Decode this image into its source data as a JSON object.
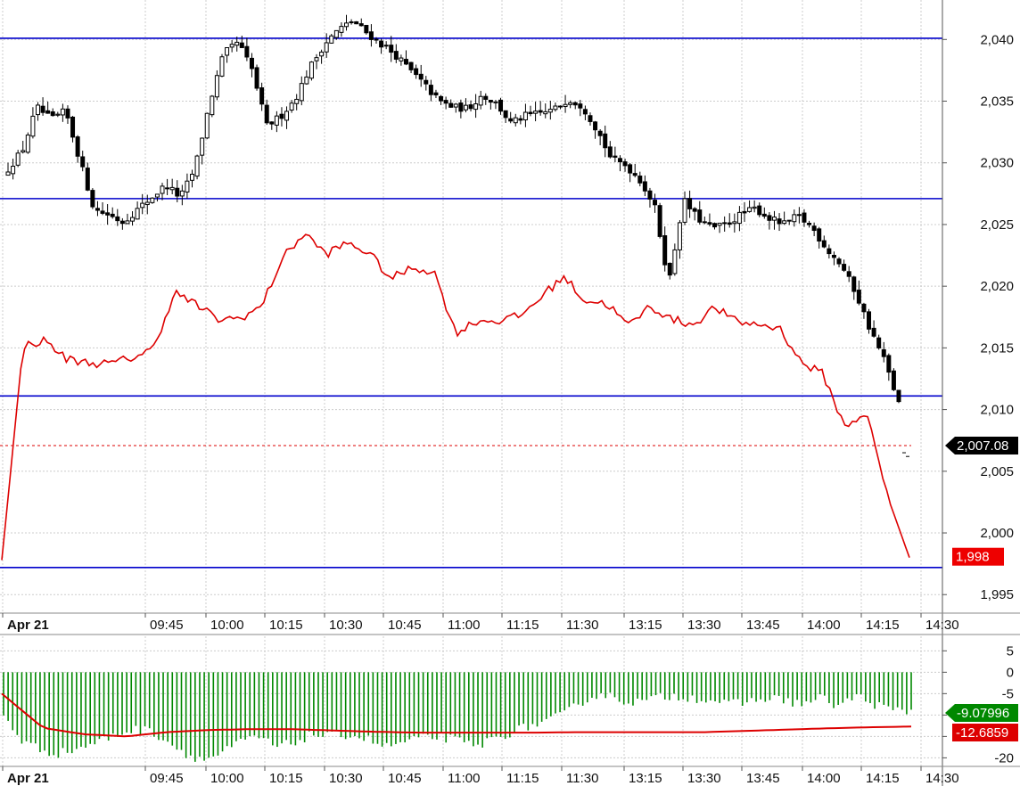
{
  "chart_data": [
    {
      "type": "candlestick",
      "panel": "price",
      "title": "",
      "xlabel": "",
      "ylabel": "",
      "x_tick_labels": [
        "Apr 21",
        "09:45",
        "10:00",
        "10:15",
        "10:30",
        "10:45",
        "11:00",
        "11:15",
        "11:30",
        "13:15",
        "13:30",
        "13:45",
        "14:00",
        "14:15",
        "14:30"
      ],
      "y_tick_labels": [
        "2,040",
        "2,035",
        "2,030",
        "2,025",
        "2,020",
        "2,015",
        "2,010",
        "2,005",
        "2,000",
        "1,995"
      ],
      "y_ticks": [
        2040,
        2035,
        2030,
        2025,
        2020,
        2015,
        2010,
        2005,
        2000,
        1995
      ],
      "ylim": [
        1993.5,
        2043.2
      ],
      "grid": true,
      "horizontal_lines": [
        2040.1,
        2027.1,
        2011.1,
        1997.2
      ],
      "horizontal_line_color": "#0000cc",
      "last_price_dashed": 2007.08,
      "last_price_label": "2,007.08",
      "red_line_last_label": "1,998",
      "candle_close_path": [
        2029.5,
        2031,
        2034.5,
        2033.5,
        2034.2,
        2030.2,
        2026.2,
        2025.8,
        2025.2,
        2026.2,
        2027.2,
        2028.2,
        2027.2,
        2029.5,
        2034.7,
        2038.8,
        2039.8,
        2037.5,
        2033,
        2033.8,
        2035.2,
        2037.7,
        2039.6,
        2040.8,
        2041.5,
        2040.5,
        2039.6,
        2038.7,
        2037.5,
        2036.3,
        2035,
        2034.5,
        2034.4,
        2035.5,
        2034.8,
        2033.2,
        2033.8,
        2034,
        2034.3,
        2035.2,
        2034.6,
        2032.7,
        2030.3,
        2029.8,
        2028.6,
        2026.5,
        2020.3,
        2027,
        2025.5,
        2024.7,
        2025,
        2025.8,
        2026.3,
        2025.5,
        2025,
        2025.7,
        2024.7,
        2023,
        2021.7,
        2019.5,
        2016.5,
        2014,
        2010.5
      ],
      "series": [
        {
          "name": "",
          "color": "#dd0000",
          "values": [
            1997.8,
            2015.2,
            2015.6,
            2014.1,
            2013.8,
            2013.7,
            2014.2,
            2014.9,
            2019.5,
            2018.5,
            2017.3,
            2017.4,
            2018.3,
            2022.3,
            2024.3,
            2022.6,
            2023.5,
            2022.7,
            2020.6,
            2021.5,
            2021.2,
            2016.2,
            2017.2,
            2017.2,
            2017.6,
            2019.2,
            2020.8,
            2018.8,
            2018.6,
            2016.8,
            2018.4,
            2017.3,
            2016.9,
            2018.3,
            2017.1,
            2016.9,
            2016.6,
            2013.8,
            2012.9,
            2008.6,
            2009.8,
            2002.9,
            1998
          ]
        }
      ]
    },
    {
      "type": "bar",
      "panel": "oscillator",
      "title": "",
      "xlabel": "",
      "ylabel": "",
      "x_tick_labels": [
        "Apr 21",
        "09:45",
        "10:00",
        "10:15",
        "10:30",
        "10:45",
        "11:00",
        "11:15",
        "11:30",
        "13:15",
        "13:30",
        "13:45",
        "14:00",
        "14:15",
        "14:30"
      ],
      "y_tick_labels": [
        "5",
        "0",
        "-5",
        "-10",
        "-15",
        "-20"
      ],
      "y_ticks": [
        5,
        0,
        -5,
        -10,
        -15,
        -20
      ],
      "ylim": [
        -22,
        8.4
      ],
      "grid": true,
      "bar_color": "#008800",
      "histogram_path": [
        -10,
        -16,
        -18,
        -19,
        -18,
        -16.5,
        -15,
        -13.5,
        -13.5,
        -16,
        -19,
        -20.5,
        -19,
        -16.5,
        -15,
        -17.5,
        -16.5,
        -14.5,
        -15,
        -14.5,
        -15.5,
        -17.5,
        -16.5,
        -15.5,
        -15,
        -16,
        -17.5,
        -15.5,
        -14,
        -12.5,
        -11.5,
        -9.5,
        -6.5,
        -5,
        -6.5,
        -7,
        -6,
        -5.5,
        -6,
        -6.5,
        -7.5,
        -7,
        -6,
        -6.5,
        -7.5,
        -6,
        -8,
        -5.5,
        -7.5,
        -9,
        -9.07996
      ],
      "series": [
        {
          "name": "",
          "color": "#dd0000",
          "values": [
            -5,
            -13,
            -14.5,
            -15,
            -14,
            -13.5,
            -13.3,
            -13.3,
            -13.6,
            -13.9,
            -14.1,
            -14.1,
            -14.1,
            -14.1,
            -14,
            -14,
            -14,
            -14,
            -13.7,
            -13.4,
            -13.1,
            -12.85,
            -12.6859
          ]
        }
      ],
      "last_histogram_label": "-9.07996",
      "last_line_label": "-12.6859",
      "last_histogram_color": "#008800",
      "last_line_color": "#dd0000"
    }
  ]
}
